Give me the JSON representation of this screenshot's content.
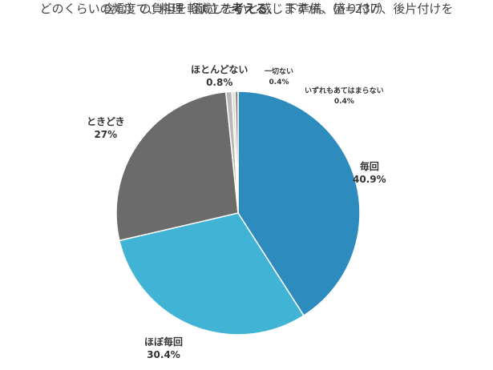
{
  "chart_data": {
    "type": "pie",
    "title": {
      "line1_a": "どのくらいの頻度で、料理（献立を",
      "line1_bold": "考える、",
      "line1_b": "　下準備、盛り付け、後片付けを",
      "line2": "含む）の負担を軽減したいと感じますか。（n=237）"
    },
    "slices": [
      {
        "label": "毎回",
        "value": 40.9,
        "pct_text": "40.9%",
        "color": "#2e8bbd"
      },
      {
        "label": "ほぼ毎回",
        "value": 30.4,
        "pct_text": "30.4%",
        "color": "#41b4d6"
      },
      {
        "label": "ときどき",
        "value": 27,
        "pct_text": "27%",
        "color": "#6b6b6b"
      },
      {
        "label": "ほとんどない",
        "value": 0.8,
        "pct_text": "0.8%",
        "color": "#b8b8b8"
      },
      {
        "label": "一切ない",
        "value": 0.4,
        "pct_text": "0.4%",
        "color": "#d6d6d6"
      },
      {
        "label": "いずれもあてはまらない",
        "value": 0.4,
        "pct_text": "0.4%",
        "color": "#8a8a8a"
      }
    ]
  }
}
